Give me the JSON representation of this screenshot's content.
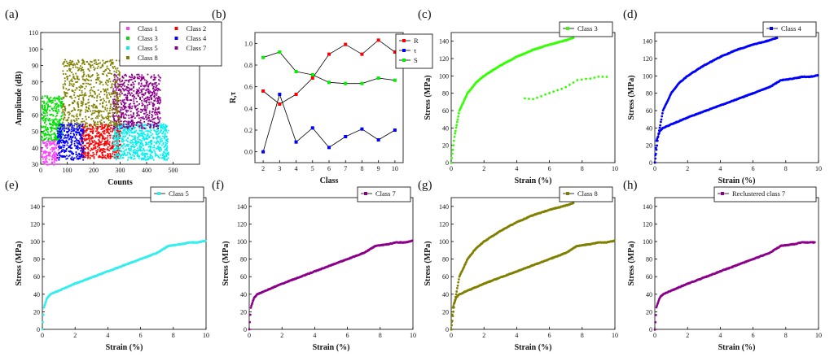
{
  "figure": {
    "panels": [
      "(a)",
      "(b)",
      "(c)",
      "(d)",
      "(e)",
      "(f)",
      "(g)",
      "(h)"
    ]
  },
  "chart_data": [
    {
      "panel": "(a)",
      "type": "scatter",
      "xlabel": "Counts",
      "ylabel": "Amplitude (dB)",
      "xlim": [
        0,
        600
      ],
      "ylim": [
        30,
        110
      ],
      "xticks": [
        0,
        100,
        200,
        300,
        400,
        500
      ],
      "yticks": [
        30,
        40,
        50,
        60,
        70,
        80,
        90,
        100,
        110
      ],
      "legend_position": "top-right",
      "series": [
        {
          "name": "Class 1",
          "color": "#ff40ff",
          "region": {
            "x": [
              0,
              70
            ],
            "y": [
              30,
              45
            ]
          }
        },
        {
          "name": "Class 2",
          "color": "#ff0000",
          "region": {
            "x": [
              150,
              300
            ],
            "y": [
              34,
              55
            ]
          }
        },
        {
          "name": "Class 3",
          "color": "#00e000",
          "region": {
            "x": [
              0,
              80
            ],
            "y": [
              45,
              72
            ]
          }
        },
        {
          "name": "Class 4",
          "color": "#0000ff",
          "region": {
            "x": [
              60,
              160
            ],
            "y": [
              33,
              55
            ]
          }
        },
        {
          "name": "Class 5",
          "color": "#00f0f0",
          "region": {
            "x": [
              270,
              480
            ],
            "y": [
              33,
              55
            ]
          }
        },
        {
          "name": "Class 7",
          "color": "#8b008b",
          "region": {
            "x": [
              270,
              450
            ],
            "y": [
              52,
              85
            ]
          }
        },
        {
          "name": "Class 8",
          "color": "#808000",
          "region": {
            "x": [
              80,
              300
            ],
            "y": [
              53,
              94
            ]
          }
        }
      ]
    },
    {
      "panel": "(b)",
      "type": "line",
      "xlabel": "Class",
      "ylabel": "R,τ",
      "xlim": [
        1.5,
        10.5
      ],
      "ylim": [
        -0.1,
        1.1
      ],
      "xticks": [
        2,
        3,
        4,
        5,
        6,
        7,
        8,
        9,
        10
      ],
      "yticks": [
        0.0,
        0.2,
        0.4,
        0.6,
        0.8,
        1.0
      ],
      "legend_position": "top-right",
      "x": [
        2,
        3,
        4,
        5,
        6,
        7,
        8,
        9,
        10
      ],
      "series": [
        {
          "name": "R",
          "color": "#ff0000",
          "values": [
            0.56,
            0.44,
            0.53,
            0.68,
            0.9,
            0.99,
            0.9,
            1.03,
            0.92
          ]
        },
        {
          "name": "τ",
          "color": "#0000ff",
          "values": [
            0.0,
            0.53,
            0.09,
            0.22,
            0.04,
            0.14,
            0.21,
            0.11,
            0.2
          ]
        },
        {
          "name": "S",
          "color": "#00ee00",
          "values": [
            0.87,
            0.92,
            0.74,
            0.71,
            0.64,
            0.63,
            0.63,
            0.68,
            0.66
          ]
        }
      ]
    },
    {
      "panel": "(c)",
      "type": "scatter",
      "xlabel": "Strain (%)",
      "ylabel": "Stress (MPa)",
      "xlim": [
        0,
        10
      ],
      "ylim": [
        0,
        150
      ],
      "xticks": [
        0,
        2,
        4,
        6,
        8,
        10
      ],
      "yticks": [
        0,
        20,
        40,
        60,
        80,
        100,
        120,
        140
      ],
      "legend_position": "top-right",
      "series": [
        {
          "name": "Class 3",
          "color": "#33ff00",
          "curves": [
            "A",
            "B-sparse"
          ]
        }
      ]
    },
    {
      "panel": "(d)",
      "type": "scatter",
      "xlabel": "Strain (%)",
      "ylabel": "Stress (MPa)",
      "xlim": [
        0,
        10
      ],
      "ylim": [
        0,
        150
      ],
      "xticks": [
        0,
        2,
        4,
        6,
        8,
        10
      ],
      "yticks": [
        0,
        20,
        40,
        60,
        80,
        100,
        120,
        140
      ],
      "legend_position": "top-right",
      "series": [
        {
          "name": "Class 4",
          "color": "#0000ff",
          "curves": [
            "A",
            "B"
          ]
        }
      ]
    },
    {
      "panel": "(e)",
      "type": "scatter",
      "xlabel": "Strain (%)",
      "ylabel": "Stress (MPa)",
      "xlim": [
        0,
        10
      ],
      "ylim": [
        0,
        150
      ],
      "xticks": [
        0,
        2,
        4,
        6,
        8,
        10
      ],
      "yticks": [
        0,
        20,
        40,
        60,
        80,
        100,
        120,
        140
      ],
      "legend_position": "top-right",
      "series": [
        {
          "name": "Class 5",
          "color": "#33eeee",
          "curves": [
            "B"
          ]
        }
      ]
    },
    {
      "panel": "(f)",
      "type": "scatter",
      "xlabel": "Strain (%)",
      "ylabel": "Stress (MPa)",
      "xlim": [
        0,
        10
      ],
      "ylim": [
        0,
        150
      ],
      "xticks": [
        0,
        2,
        4,
        6,
        8,
        10
      ],
      "yticks": [
        0,
        20,
        40,
        60,
        80,
        100,
        120,
        140
      ],
      "legend_position": "top-right",
      "series": [
        {
          "name": "Class 7",
          "color": "#8b008b",
          "curves": [
            "B"
          ]
        }
      ]
    },
    {
      "panel": "(g)",
      "type": "scatter",
      "xlabel": "Strain (%)",
      "ylabel": "Stress (MPa)",
      "xlim": [
        0,
        10
      ],
      "ylim": [
        0,
        150
      ],
      "xticks": [
        0,
        2,
        4,
        6,
        8,
        10
      ],
      "yticks": [
        0,
        20,
        40,
        60,
        80,
        100,
        120,
        140
      ],
      "legend_position": "top-right",
      "series": [
        {
          "name": "Class 8",
          "color": "#808000",
          "curves": [
            "A",
            "B"
          ]
        }
      ]
    },
    {
      "panel": "(h)",
      "type": "scatter",
      "xlabel": "Strain (%)",
      "ylabel": "Stress (MPa)",
      "xlim": [
        0,
        10
      ],
      "ylim": [
        0,
        150
      ],
      "xticks": [
        0,
        2,
        4,
        6,
        8,
        10
      ],
      "yticks": [
        0,
        20,
        40,
        60,
        80,
        100,
        120,
        140
      ],
      "legend_position": "top-right",
      "series": [
        {
          "name": "Reclustered class 7",
          "color": "#8b008b",
          "curves": [
            "B-sparse"
          ]
        }
      ]
    }
  ],
  "curves": {
    "A": {
      "x": [
        0,
        0.2,
        0.5,
        1,
        1.5,
        2,
        3,
        4,
        5,
        6,
        7,
        7.5
      ],
      "y": [
        0,
        30,
        60,
        80,
        92,
        100,
        112,
        122,
        130,
        136,
        141,
        144
      ]
    },
    "B": {
      "x": [
        0,
        0.1,
        0.3,
        0.5,
        1,
        2,
        3,
        4,
        5,
        6,
        7,
        7.7,
        8.5,
        9,
        9.5,
        10
      ],
      "y": [
        0,
        25,
        36,
        40,
        44,
        52,
        59,
        66,
        73,
        80,
        87,
        95,
        97,
        99,
        99,
        101
      ]
    },
    "B-sparse": {
      "x": [
        0,
        0.1,
        0.3,
        0.5,
        1,
        2,
        3,
        4,
        5,
        6,
        7,
        7.7,
        8.5,
        9,
        9.5,
        9.8
      ],
      "y": [
        0,
        25,
        36,
        40,
        44,
        52,
        59,
        66,
        73,
        80,
        87,
        95,
        97,
        99,
        99,
        99
      ]
    }
  }
}
